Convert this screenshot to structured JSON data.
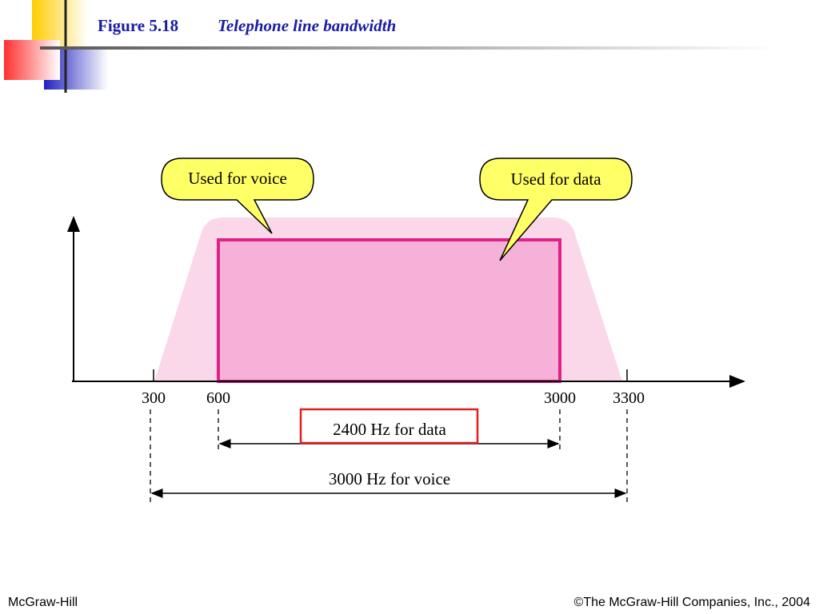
{
  "header": {
    "figure": "Figure 5.18",
    "title": "Telephone line bandwidth"
  },
  "diagram": {
    "callouts": [
      "Used for voice",
      "Used for data"
    ],
    "axis_labels": [
      "300",
      "600",
      "3000",
      "3300"
    ],
    "data_span": "2400 Hz for data",
    "voice_span": "3000 Hz for voice"
  },
  "footer": {
    "left": "McGraw-Hill",
    "right": "©The McGraw-Hill Companies, Inc., 2004"
  }
}
